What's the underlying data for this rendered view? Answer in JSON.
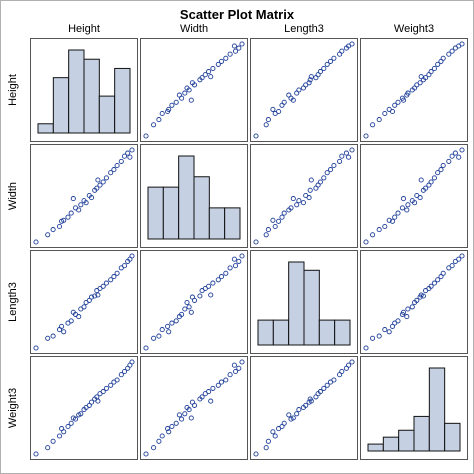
{
  "chart_data": {
    "type": "scatter-matrix",
    "title": "Scatter Plot Matrix",
    "variables": [
      "Height",
      "Width",
      "Length3",
      "Weight3"
    ],
    "observations": [
      {
        "Height": 1.0,
        "Width": 1.0,
        "Length3": 1.5,
        "Weight3": 1.2
      },
      {
        "Height": 2.1,
        "Width": 1.7,
        "Length3": 2.4,
        "Weight3": 1.8
      },
      {
        "Height": 2.6,
        "Width": 2.2,
        "Length3": 2.6,
        "Weight3": 2.4
      },
      {
        "Height": 3.2,
        "Width": 2.5,
        "Length3": 3.2,
        "Weight3": 2.9
      },
      {
        "Height": 3.6,
        "Width": 3.1,
        "Length3": 3.0,
        "Weight3": 3.3
      },
      {
        "Height": 4.0,
        "Width": 3.4,
        "Length3": 3.8,
        "Weight3": 3.8
      },
      {
        "Height": 4.3,
        "Width": 3.8,
        "Length3": 4.0,
        "Weight3": 4.1
      },
      {
        "Height": 4.7,
        "Width": 4.3,
        "Length3": 4.6,
        "Weight3": 4.5
      },
      {
        "Height": 5.0,
        "Width": 4.1,
        "Length3": 4.4,
        "Weight3": 4.9
      },
      {
        "Height": 5.2,
        "Width": 4.6,
        "Length3": 5.1,
        "Weight3": 5.0
      },
      {
        "Height": 5.5,
        "Width": 5.0,
        "Length3": 5.3,
        "Weight3": 5.4
      },
      {
        "Height": 5.7,
        "Width": 4.8,
        "Length3": 5.7,
        "Weight3": 5.6
      },
      {
        "Height": 6.0,
        "Width": 5.5,
        "Length3": 5.9,
        "Weight3": 5.8
      },
      {
        "Height": 6.2,
        "Width": 5.3,
        "Length3": 6.2,
        "Weight3": 6.1
      },
      {
        "Height": 6.5,
        "Width": 6.0,
        "Length3": 6.3,
        "Weight3": 6.4
      },
      {
        "Height": 6.7,
        "Width": 6.2,
        "Length3": 6.8,
        "Weight3": 6.6
      },
      {
        "Height": 7.0,
        "Width": 6.5,
        "Length3": 7.0,
        "Weight3": 6.9
      },
      {
        "Height": 7.3,
        "Width": 6.8,
        "Length3": 7.2,
        "Weight3": 7.1
      },
      {
        "Height": 7.6,
        "Width": 7.2,
        "Length3": 7.5,
        "Weight3": 7.4
      },
      {
        "Height": 8.0,
        "Width": 7.7,
        "Length3": 7.8,
        "Weight3": 7.7
      },
      {
        "Height": 8.3,
        "Width": 8.0,
        "Length3": 8.1,
        "Weight3": 8.0
      },
      {
        "Height": 8.6,
        "Width": 8.4,
        "Length3": 8.4,
        "Weight3": 8.2
      },
      {
        "Height": 9.0,
        "Width": 8.8,
        "Length3": 8.9,
        "Weight3": 8.7
      },
      {
        "Height": 9.3,
        "Width": 9.3,
        "Length3": 9.1,
        "Weight3": 9.0
      },
      {
        "Height": 9.6,
        "Width": 9.6,
        "Length3": 9.5,
        "Weight3": 9.3
      },
      {
        "Height": 9.8,
        "Width": 9.2,
        "Length3": 9.7,
        "Weight3": 9.6
      },
      {
        "Height": 10.0,
        "Width": 9.9,
        "Length3": 10.0,
        "Weight3": 9.9
      },
      {
        "Height": 4.5,
        "Width": 5.2,
        "Length3": 4.8,
        "Weight3": 4.6
      },
      {
        "Height": 3.4,
        "Width": 3.0,
        "Length3": 3.5,
        "Weight3": 3.6
      },
      {
        "Height": 6.8,
        "Width": 7.0,
        "Length3": 6.4,
        "Weight3": 6.2
      }
    ],
    "histograms": {
      "Height": [
        1,
        6,
        9,
        8,
        4,
        7
      ],
      "Width": [
        5,
        5,
        8,
        6,
        3,
        3
      ],
      "Length3": [
        3,
        3,
        10,
        9,
        3,
        3
      ],
      "Weight3": [
        1,
        2,
        3,
        5,
        12,
        4
      ]
    },
    "colors": {
      "marker": "#1f3f99",
      "histogram_fill": "#c5d1e3",
      "histogram_stroke": "#111111",
      "panel_border": "#555555",
      "panel_background": "#ffffff",
      "page_border": "#8c8c8c"
    }
  }
}
